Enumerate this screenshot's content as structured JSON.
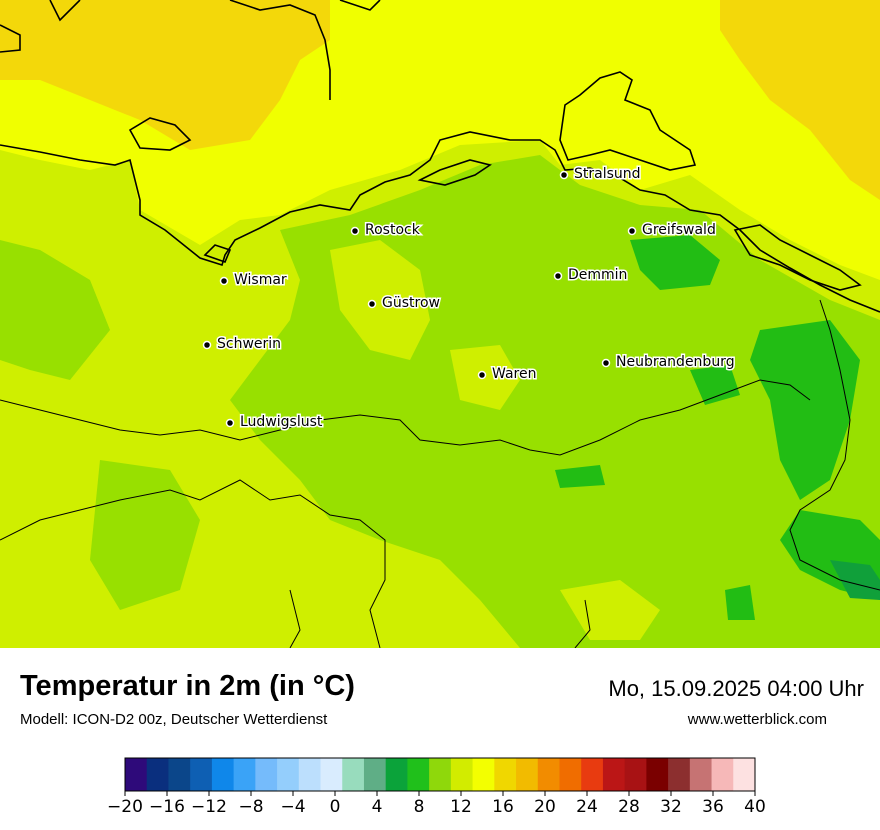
{
  "header": {
    "title": "Temperatur in 2m (in °C)",
    "model": "Modell: ICON-D2 00z, Deutscher Wetterdienst",
    "datetime": "Mo, 15.09.2025 04:00 Uhr",
    "website": "www.wetterblick.com"
  },
  "cities": [
    {
      "name": "Stralsund"
    },
    {
      "name": "Rostock"
    },
    {
      "name": "Greifswald"
    },
    {
      "name": "Wismar"
    },
    {
      "name": "Demmin"
    },
    {
      "name": "Güstrow"
    },
    {
      "name": "Schwerin"
    },
    {
      "name": "Neubrandenburg"
    },
    {
      "name": "Waren"
    },
    {
      "name": "Ludwigslust"
    }
  ],
  "legend": {
    "min": -20,
    "max": 40,
    "step": 2,
    "tick_labels": [
      "−20",
      "−16",
      "−12",
      "−8",
      "−4",
      "0",
      "4",
      "8",
      "12",
      "16",
      "20",
      "24",
      "28",
      "32",
      "36",
      "40"
    ],
    "colors": [
      "#2e0a7a",
      "#0a2f7e",
      "#0b468a",
      "#0e5fb3",
      "#0f87ea",
      "#3aa3f7",
      "#75bbfb",
      "#94cefc",
      "#bcdffd",
      "#d9ecfe",
      "#98dcbd",
      "#5fae86",
      "#0ba33a",
      "#20c01b",
      "#8fd80b",
      "#d2ec00",
      "#f3ff00",
      "#f0d700",
      "#f2bb00",
      "#f28c00",
      "#f06d00",
      "#e83b10",
      "#bb1616",
      "#a81214",
      "#7a0000",
      "#8c2f2f",
      "#c67373",
      "#f6b8b8",
      "#fde1e1"
    ]
  },
  "map_colors": {
    "t20": "#f3d80a",
    "t18": "#f0ff00",
    "t16": "#cfef00",
    "t14": "#98e000",
    "t12": "#22bd14",
    "t10": "#10a03a",
    "border": "#000000"
  }
}
